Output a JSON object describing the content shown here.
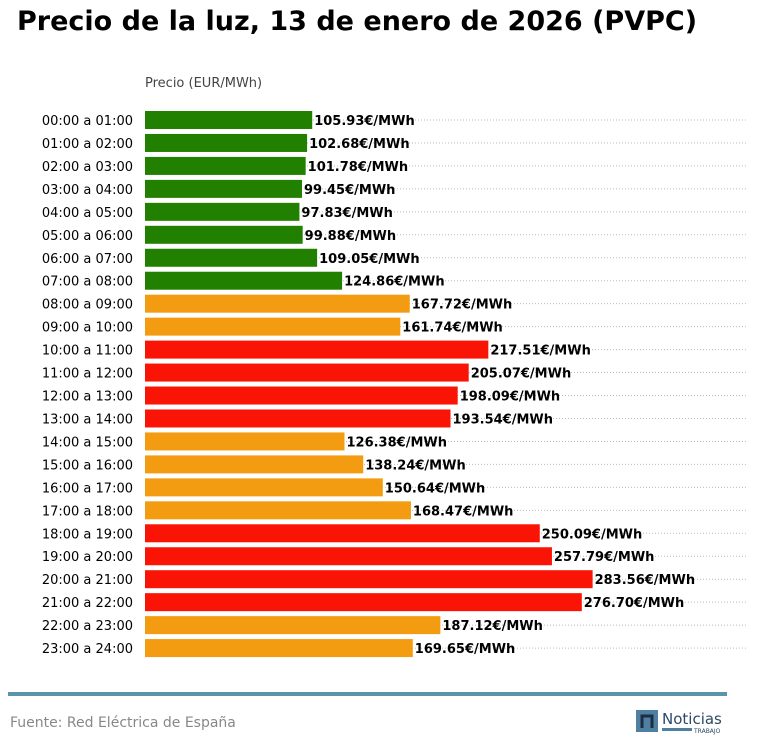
{
  "title": "Precio de la luz, 13 de enero de 2026 (PVPC)",
  "source": "Fuente: Red Eléctrica de España",
  "logo": {
    "text": "Noticias",
    "subtext": "TRABAJO"
  },
  "colors": {
    "low": "#228000",
    "mid": "#f39c12",
    "high": "#fa1405",
    "rule": "#5b93aa"
  },
  "chart_data": {
    "type": "bar",
    "orientation": "horizontal",
    "xlabel": "Precio (EUR/MWh)",
    "value_suffix": "€/MWh",
    "xlim": [
      0,
      382
    ],
    "grid": "horizontal dotted",
    "categories": [
      "00:00 a 01:00",
      "01:00 a 02:00",
      "02:00 a 03:00",
      "03:00 a 04:00",
      "04:00 a 05:00",
      "05:00 a 06:00",
      "06:00 a 07:00",
      "07:00 a 08:00",
      "08:00 a 09:00",
      "09:00 a 10:00",
      "10:00 a 11:00",
      "11:00 a 12:00",
      "12:00 a 13:00",
      "13:00 a 14:00",
      "14:00 a 15:00",
      "15:00 a 16:00",
      "16:00 a 17:00",
      "17:00 a 18:00",
      "18:00 a 19:00",
      "19:00 a 20:00",
      "20:00 a 21:00",
      "21:00 a 22:00",
      "22:00 a 23:00",
      "23:00 a 24:00"
    ],
    "values": [
      105.93,
      102.68,
      101.78,
      99.45,
      97.83,
      99.88,
      109.05,
      124.86,
      167.72,
      161.74,
      217.51,
      205.07,
      198.09,
      193.54,
      126.38,
      138.24,
      150.64,
      168.47,
      250.09,
      257.79,
      283.56,
      276.7,
      187.12,
      169.65
    ],
    "levels": [
      "low",
      "low",
      "low",
      "low",
      "low",
      "low",
      "low",
      "low",
      "mid",
      "mid",
      "high",
      "high",
      "high",
      "high",
      "mid",
      "mid",
      "mid",
      "mid",
      "high",
      "high",
      "high",
      "high",
      "mid",
      "mid"
    ]
  }
}
